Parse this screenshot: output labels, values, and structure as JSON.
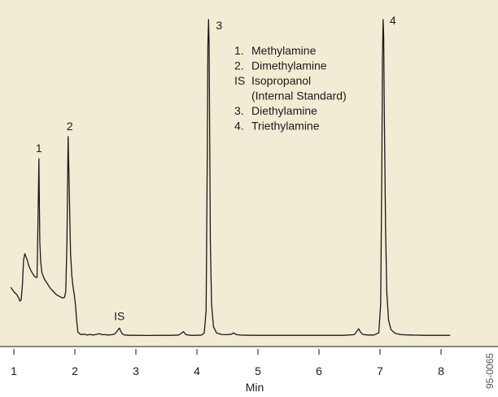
{
  "chart_data": {
    "type": "line",
    "xlabel": "Min",
    "ylabel": "",
    "xlim": [
      0.95,
      8.25
    ],
    "ylim": [
      0,
      100
    ],
    "x_ticks": [
      1,
      2,
      3,
      4,
      5,
      6,
      7,
      8
    ],
    "grid": false,
    "legend_position": "top-center",
    "legend": [
      {
        "marker": "1.",
        "text": "Methylamine"
      },
      {
        "marker": "2.",
        "text": "Dimethylamine"
      },
      {
        "marker": "IS",
        "text": "Isopropanol"
      },
      {
        "marker": "",
        "text": "(Internal Standard)"
      },
      {
        "marker": "3.",
        "text": "Diethylamine"
      },
      {
        "marker": "4.",
        "text": "Triethylamine"
      }
    ],
    "peaks": [
      {
        "label": "1",
        "x": 1.41,
        "y": 56
      },
      {
        "label": "2",
        "x": 1.89,
        "y": 63
      },
      {
        "label": "IS",
        "x": 2.73,
        "y": 2.5
      },
      {
        "label": "3",
        "x": 4.19,
        "y": 100
      },
      {
        "label": "4",
        "x": 7.05,
        "y": 100
      }
    ],
    "series": [
      {
        "x": [
          0.95,
          1.0,
          1.05,
          1.08,
          1.1,
          1.12,
          1.14,
          1.16,
          1.18,
          1.2,
          1.22,
          1.24,
          1.27,
          1.3,
          1.33,
          1.36,
          1.38,
          1.395,
          1.41,
          1.425,
          1.44,
          1.46,
          1.5,
          1.55,
          1.6,
          1.65,
          1.7,
          1.75,
          1.8,
          1.83,
          1.85,
          1.87,
          1.89,
          1.91,
          1.93,
          1.95,
          1.97,
          1.99,
          2.01,
          2.03,
          2.05,
          2.1,
          2.15,
          2.2,
          2.25,
          2.3,
          2.35,
          2.4,
          2.45,
          2.5,
          2.55,
          2.6,
          2.65,
          2.68,
          2.71,
          2.73,
          2.75,
          2.78,
          2.82,
          2.9,
          3.0,
          3.2,
          3.4,
          3.6,
          3.7,
          3.75,
          3.78,
          3.82,
          3.9,
          4.0,
          4.08,
          4.12,
          4.15,
          4.17,
          4.18,
          4.19,
          4.2,
          4.21,
          4.22,
          4.24,
          4.27,
          4.32,
          4.4,
          4.5,
          4.57,
          4.6,
          4.64,
          4.7,
          4.9,
          5.2,
          5.6,
          6.0,
          6.4,
          6.58,
          6.62,
          6.65,
          6.68,
          6.72,
          6.8,
          6.9,
          6.98,
          7.01,
          7.03,
          7.04,
          7.05,
          7.06,
          7.07,
          7.09,
          7.11,
          7.14,
          7.18,
          7.25,
          7.35,
          7.5,
          7.7,
          8.0,
          8.15
        ],
        "y": [
          15.4,
          14.0,
          13.0,
          12.0,
          11.0,
          11.5,
          16.0,
          24.0,
          26.0,
          25.0,
          24.0,
          22.5,
          21.0,
          20.0,
          19.0,
          18.5,
          18.5,
          35.0,
          56.0,
          30.0,
          23.5,
          20.0,
          18.0,
          16.5,
          15.0,
          14.0,
          13.0,
          12.5,
          12.0,
          12.2,
          14.0,
          30.0,
          63.0,
          45.0,
          26.0,
          19.0,
          15.5,
          13.0,
          10.0,
          5.0,
          1.2,
          0.4,
          0.6,
          0.3,
          0.5,
          0.3,
          0.5,
          0.7,
          0.4,
          0.4,
          0.3,
          0.4,
          0.6,
          1.2,
          2.0,
          2.5,
          1.6,
          0.6,
          0.3,
          0.2,
          0.2,
          0.15,
          0.2,
          0.2,
          0.3,
          0.9,
          1.4,
          0.4,
          0.2,
          0.2,
          0.3,
          1.0,
          8.0,
          60.0,
          92.0,
          100.0,
          92.0,
          60.0,
          30.0,
          10.0,
          3.0,
          1.0,
          0.5,
          0.4,
          0.6,
          1.0,
          0.5,
          0.3,
          0.2,
          0.2,
          0.2,
          0.2,
          0.2,
          0.4,
          1.5,
          2.3,
          1.2,
          0.5,
          0.3,
          0.3,
          1.0,
          10.0,
          55.0,
          88.0,
          100.0,
          95.0,
          70.0,
          35.0,
          14.0,
          5.0,
          2.0,
          0.8,
          0.4,
          0.3,
          0.2,
          0.2,
          0.2
        ]
      }
    ]
  },
  "figure_code": "95-0065"
}
